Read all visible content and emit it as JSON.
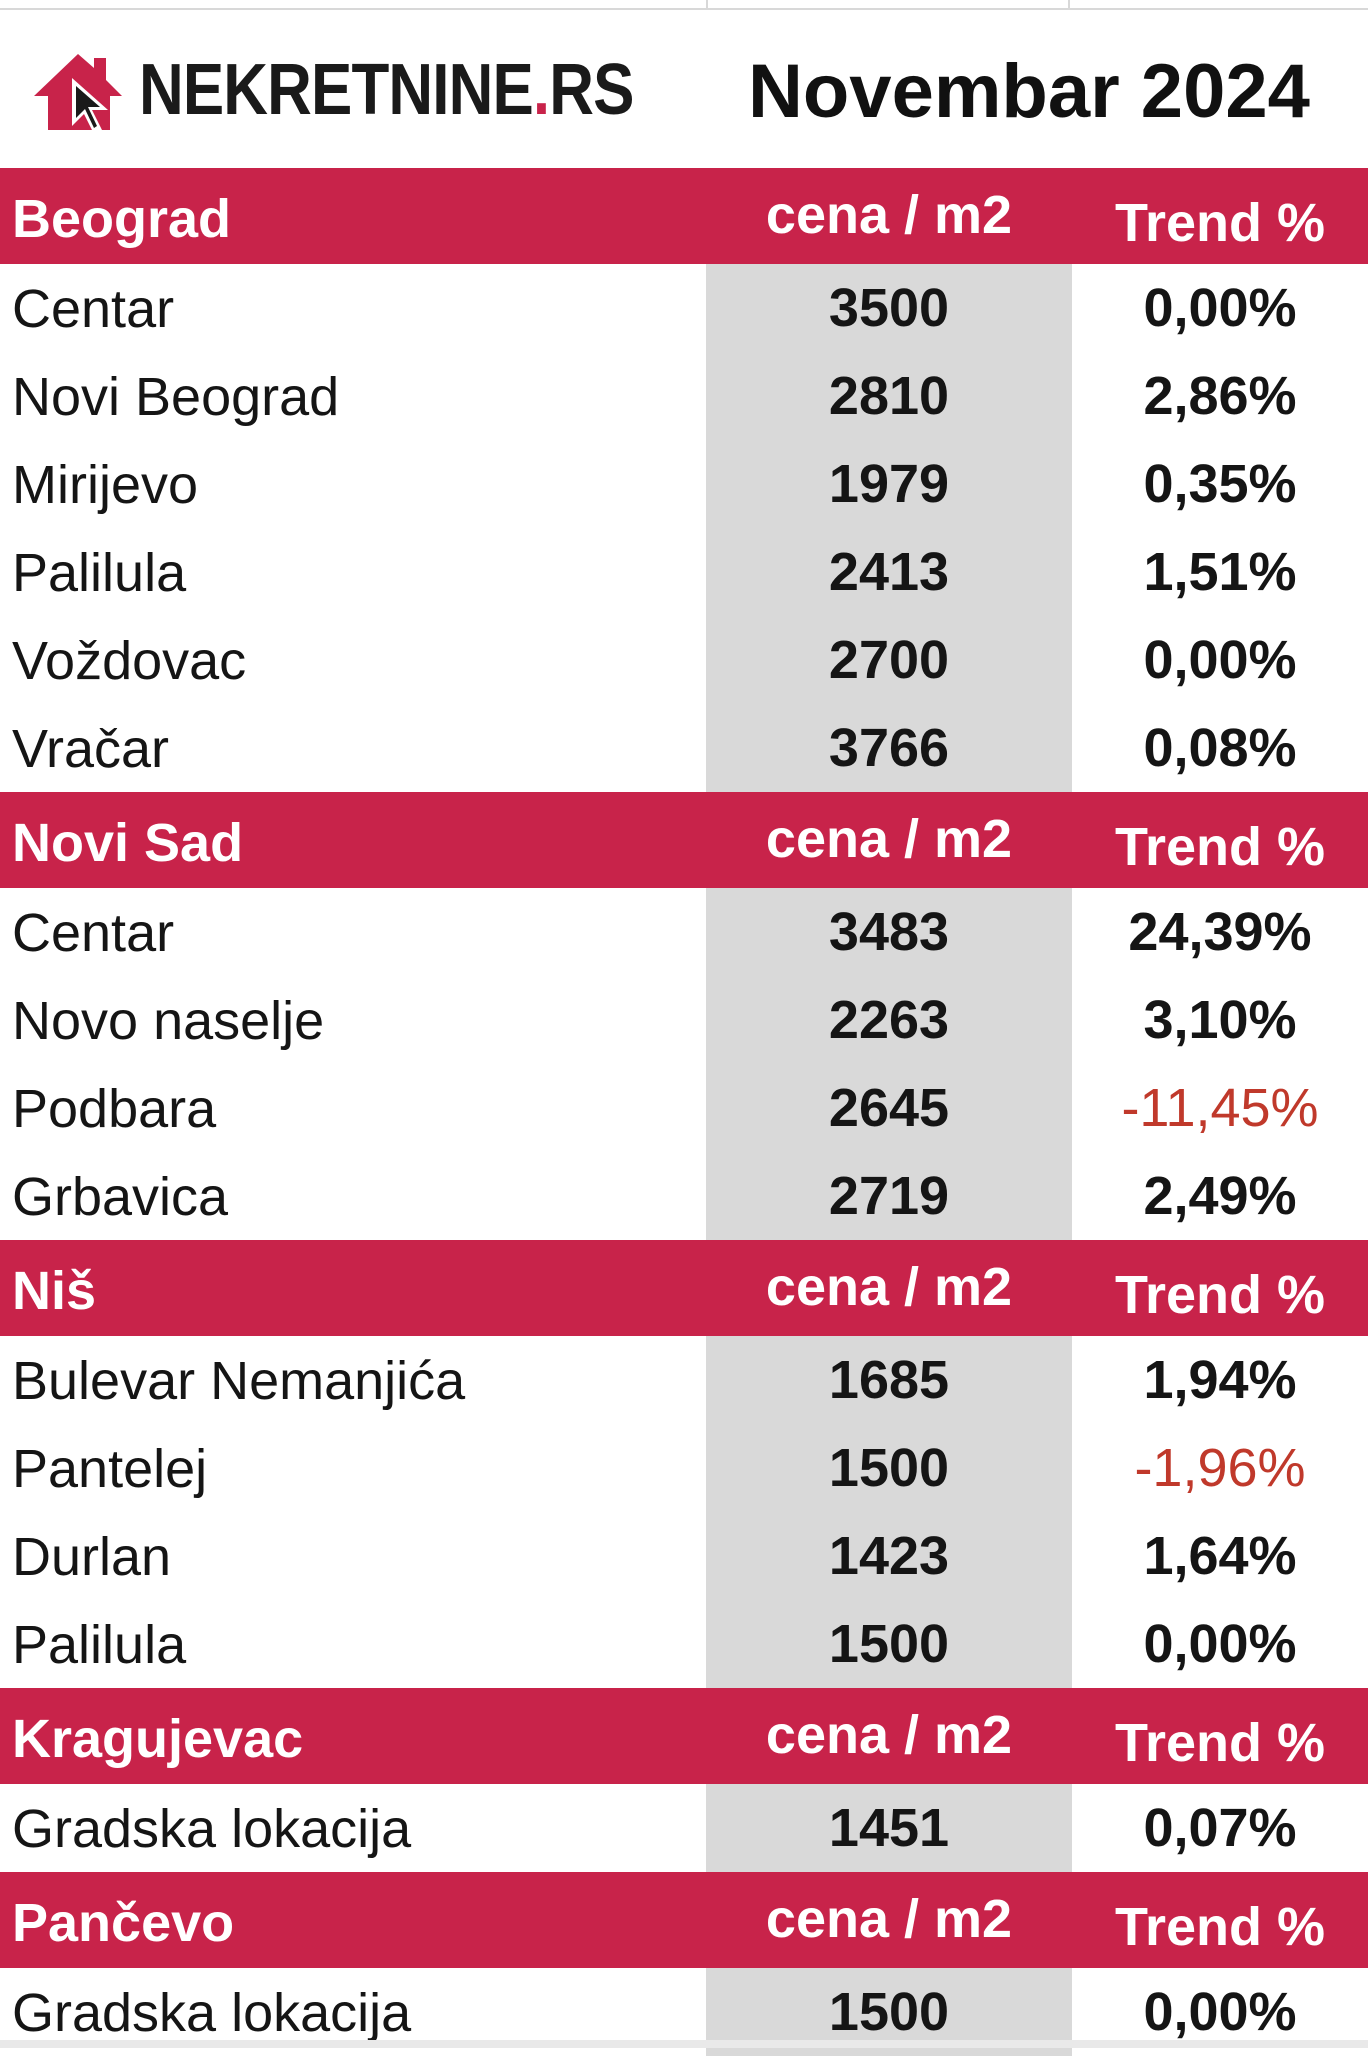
{
  "logo": {
    "text_main": "NEKRETNINE",
    "text_dot": ".",
    "text_suffix": "RS"
  },
  "report_title": "Novembar 2024",
  "colors": {
    "accent": "#c8234a",
    "price_column_bg": "#d9d9d9",
    "negative_trend": "#c0392b"
  },
  "column_headers": {
    "price": "cena / m2",
    "trend": "Trend %"
  },
  "sections": [
    {
      "city": "Beograd",
      "rows": [
        {
          "name": "Centar",
          "price": "3500",
          "trend": "0,00%",
          "negative": false
        },
        {
          "name": "Novi Beograd",
          "price": "2810",
          "trend": "2,86%",
          "negative": false
        },
        {
          "name": "Mirijevo",
          "price": "1979",
          "trend": "0,35%",
          "negative": false
        },
        {
          "name": "Palilula",
          "price": "2413",
          "trend": "1,51%",
          "negative": false
        },
        {
          "name": "Voždovac",
          "price": "2700",
          "trend": "0,00%",
          "negative": false
        },
        {
          "name": "Vračar",
          "price": "3766",
          "trend": "0,08%",
          "negative": false
        }
      ]
    },
    {
      "city": "Novi Sad",
      "rows": [
        {
          "name": "Centar",
          "price": "3483",
          "trend": "24,39%",
          "negative": false
        },
        {
          "name": "Novo naselje",
          "price": "2263",
          "trend": "3,10%",
          "negative": false
        },
        {
          "name": "Podbara",
          "price": "2645",
          "trend": "-11,45%",
          "negative": true
        },
        {
          "name": "Grbavica",
          "price": "2719",
          "trend": "2,49%",
          "negative": false
        }
      ]
    },
    {
      "city": "Niš",
      "rows": [
        {
          "name": "Bulevar Nemanjića",
          "price": "1685",
          "trend": "1,94%",
          "negative": false
        },
        {
          "name": "Pantelej",
          "price": "1500",
          "trend": "-1,96%",
          "negative": true
        },
        {
          "name": "Durlan",
          "price": "1423",
          "trend": "1,64%",
          "negative": false
        },
        {
          "name": "Palilula",
          "price": "1500",
          "trend": "0,00%",
          "negative": false
        }
      ]
    },
    {
      "city": "Kragujevac",
      "rows": [
        {
          "name": "Gradska lokacija",
          "price": "1451",
          "trend": "0,07%",
          "negative": false
        }
      ]
    },
    {
      "city": "Pančevo",
      "rows": [
        {
          "name": "Gradska lokacija",
          "price": "1500",
          "trend": "0,00%",
          "negative": false
        }
      ]
    }
  ]
}
